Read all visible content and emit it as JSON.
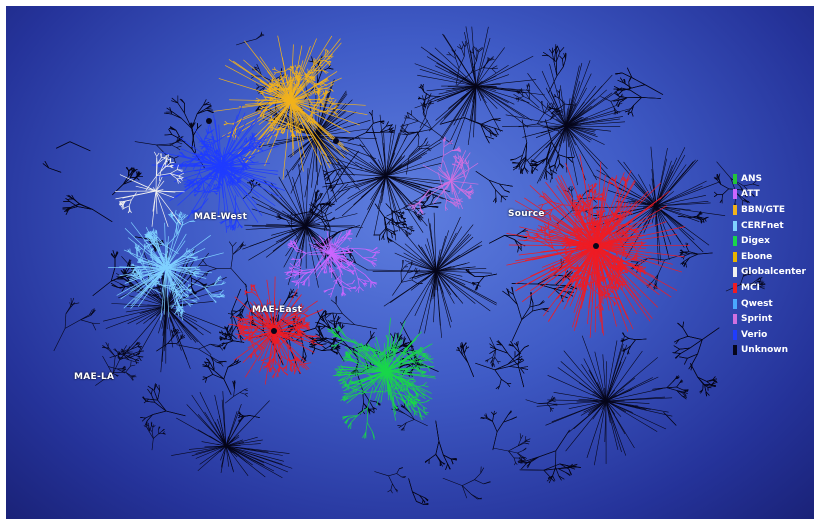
{
  "hub_labels": {
    "mae_west": "MAE-West",
    "mae_east": "MAE-East",
    "mae_la": "MAE-LA",
    "source": "Source"
  },
  "legend": [
    {
      "label": "ANS",
      "color": "#22c33a"
    },
    {
      "label": "ATT",
      "color": "#cc66ff"
    },
    {
      "label": "BBN/GTE",
      "color": "#f2b21c"
    },
    {
      "label": "CERFnet",
      "color": "#7fd0ff"
    },
    {
      "label": "Digex",
      "color": "#19d64b"
    },
    {
      "label": "Ebone",
      "color": "#e8b400"
    },
    {
      "label": "Globalcenter",
      "color": "#f0f0f0"
    },
    {
      "label": "MCI",
      "color": "#ee1c24"
    },
    {
      "label": "Qwest",
      "color": "#4aa8ff"
    },
    {
      "label": "Sprint",
      "color": "#d070e0"
    },
    {
      "label": "Verio",
      "color": "#1f3cff"
    },
    {
      "label": "Unknown",
      "color": "#06061a"
    }
  ]
}
